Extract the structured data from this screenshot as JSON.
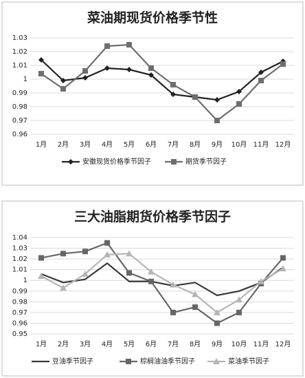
{
  "chart_data": [
    {
      "type": "line",
      "title": "菜油期现货价格季节性",
      "categories": [
        "1月",
        "2月",
        "3月",
        "4月",
        "5月",
        "6月",
        "7月",
        "8月",
        "9月",
        "10月",
        "11月",
        "12月"
      ],
      "series": [
        {
          "name": "安徽现货价格季节因子",
          "color": "#222222",
          "marker": "diamond",
          "values": [
            1.014,
            0.999,
            1.001,
            1.008,
            1.007,
            1.003,
            0.989,
            0.987,
            0.985,
            0.991,
            1.005,
            1.013
          ]
        },
        {
          "name": "期货季节因子",
          "color": "#6e6e6e",
          "marker": "square",
          "values": [
            1.004,
            0.993,
            1.006,
            1.024,
            1.025,
            1.008,
            0.996,
            0.987,
            0.97,
            0.982,
            0.999,
            1.011
          ]
        }
      ],
      "ylim": [
        0.96,
        1.03
      ],
      "yticks": [
        0.96,
        0.97,
        0.98,
        0.99,
        1,
        1.01,
        1.02,
        1.03
      ],
      "grid": true
    },
    {
      "type": "line",
      "title": "三大油脂期货价格季节因子",
      "categories": [
        "1月",
        "2月",
        "3月",
        "4月",
        "5月",
        "6月",
        "7月",
        "8月",
        "9月",
        "10月",
        "11月",
        "12月"
      ],
      "series": [
        {
          "name": "豆油季节因子",
          "color": "#3a3a3a",
          "marker": "none",
          "values": [
            1.006,
            0.998,
            1.001,
            1.016,
            0.999,
            0.999,
            0.995,
            0.998,
            0.986,
            0.99,
            0.998,
            1.012
          ]
        },
        {
          "name": "棕榈油油季节因子",
          "color": "#666666",
          "marker": "square",
          "values": [
            1.021,
            1.025,
            1.027,
            1.035,
            1.007,
            0.999,
            0.97,
            0.975,
            0.96,
            0.97,
            0.997,
            1.021
          ]
        },
        {
          "name": "菜油季节因子",
          "color": "#b5b5b5",
          "marker": "triangle",
          "values": [
            1.004,
            0.993,
            1.006,
            1.024,
            1.025,
            1.008,
            0.996,
            0.987,
            0.97,
            0.982,
            0.999,
            1.011
          ]
        }
      ],
      "ylim": [
        0.95,
        1.04
      ],
      "yticks": [
        0.95,
        0.96,
        0.97,
        0.98,
        0.99,
        1,
        1.01,
        1.02,
        1.03,
        1.04
      ],
      "grid": true
    }
  ]
}
